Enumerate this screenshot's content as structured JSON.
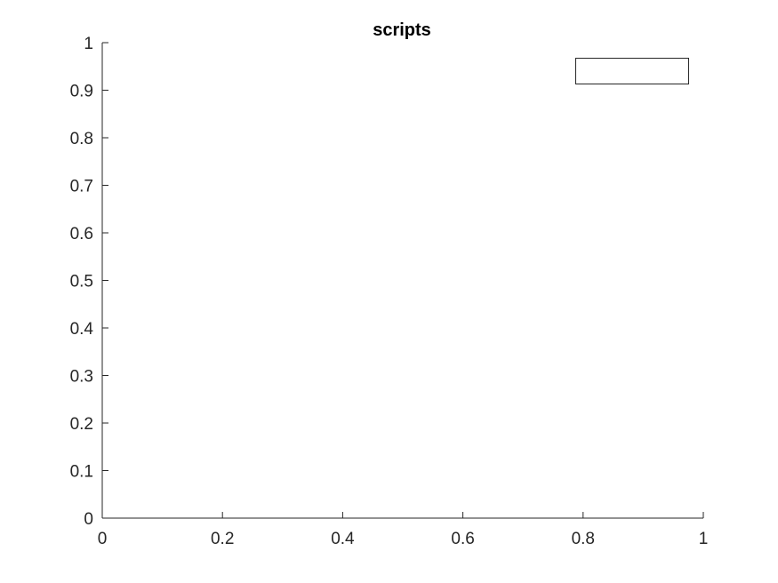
{
  "chart_data": {
    "type": "line",
    "title": "scripts",
    "xlabel": "",
    "ylabel": "",
    "xlim": [
      0,
      1
    ],
    "ylim": [
      0,
      1
    ],
    "x_ticks": [
      0,
      0.2,
      0.4,
      0.6,
      0.8,
      1
    ],
    "x_tick_labels": [
      "0",
      "0.2",
      "0.4",
      "0.6",
      "0.8",
      "1"
    ],
    "y_ticks": [
      0,
      0.1,
      0.2,
      0.3,
      0.4,
      0.5,
      0.6,
      0.7,
      0.8,
      0.9,
      1
    ],
    "y_tick_labels": [
      "0",
      "0.1",
      "0.2",
      "0.3",
      "0.4",
      "0.5",
      "0.6",
      "0.7",
      "0.8",
      "0.9",
      "1"
    ],
    "grid": false,
    "legend_placement": "top-right",
    "legend_entries": [],
    "series": [],
    "colors": {
      "axis": "#262626",
      "legend_border": "#262626",
      "background": "#ffffff"
    }
  }
}
